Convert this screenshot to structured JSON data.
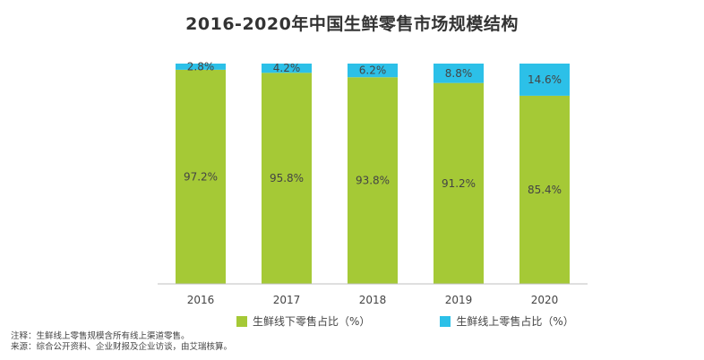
{
  "title": "2016-2020年中国生鲜零售市场规模结构",
  "footnotes": {
    "note": "注释：生鲜线上零售规模含所有线上渠道零售。",
    "source": "来源：综合公开资料、企业财报及企业访谈，由艾瑞核算。"
  },
  "chart_data": {
    "type": "bar",
    "stacked": true,
    "categories": [
      "2016",
      "2017",
      "2018",
      "2019",
      "2020"
    ],
    "series": [
      {
        "name": "生鲜线下零售占比（%）",
        "values": [
          97.2,
          95.8,
          93.8,
          91.2,
          85.4
        ],
        "labels": [
          "97.2%",
          "95.8%",
          "93.8%",
          "91.2%",
          "85.4%"
        ],
        "color": "#a5c936"
      },
      {
        "name": "生鲜线上零售占比（%）",
        "values": [
          2.8,
          4.2,
          6.2,
          8.8,
          14.6
        ],
        "labels": [
          "2.8%",
          "4.2%",
          "6.2%",
          "8.8%",
          "14.6%"
        ],
        "color": "#2cc0e8"
      }
    ],
    "ylim": [
      0,
      100
    ],
    "grid": false,
    "legend": "bottom"
  }
}
